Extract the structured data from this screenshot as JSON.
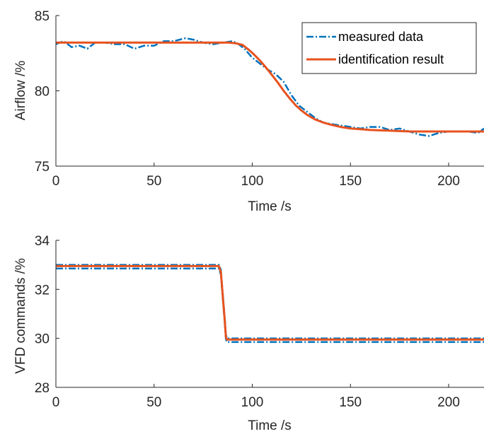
{
  "chart_data": [
    {
      "type": "line",
      "title": "",
      "xlabel": "Time /s",
      "ylabel": "Airflow /%",
      "xlim": [
        0,
        218
      ],
      "ylim": [
        75,
        85
      ],
      "xticks": [
        0,
        50,
        100,
        150,
        200
      ],
      "yticks": [
        75,
        80,
        85
      ],
      "legend_position": "top-right",
      "series": [
        {
          "name": "measured data",
          "color": "#0072BD",
          "style": "dash-dot",
          "x": [
            0,
            4,
            8,
            12,
            16,
            20,
            25,
            30,
            35,
            40,
            45,
            50,
            55,
            60,
            66,
            70,
            75,
            80,
            85,
            90,
            93,
            96,
            100,
            104,
            108,
            112,
            116,
            120,
            124,
            128,
            132,
            136,
            140,
            145,
            150,
            155,
            160,
            165,
            170,
            175,
            180,
            185,
            190,
            195,
            200,
            205,
            210,
            215,
            218
          ],
          "y": [
            83.1,
            83.3,
            82.9,
            83.0,
            82.8,
            83.2,
            83.2,
            83.1,
            83.1,
            82.8,
            83.0,
            83.0,
            83.3,
            83.3,
            83.5,
            83.4,
            83.2,
            83.1,
            83.2,
            83.3,
            83.1,
            82.8,
            82.2,
            81.8,
            81.4,
            81.1,
            80.6,
            79.7,
            79.0,
            78.6,
            78.2,
            77.9,
            77.8,
            77.7,
            77.6,
            77.5,
            77.6,
            77.6,
            77.4,
            77.5,
            77.3,
            77.1,
            77.0,
            77.2,
            77.3,
            77.3,
            77.3,
            77.2,
            77.5
          ]
        },
        {
          "name": "identification result",
          "color": "#E8521E",
          "style": "solid",
          "x": [
            0,
            20,
            40,
            60,
            80,
            88,
            92,
            95,
            98,
            101,
            104,
            107,
            110,
            113,
            116,
            119,
            122,
            125,
            128,
            132,
            136,
            140,
            145,
            150,
            155,
            160,
            170,
            180,
            190,
            200,
            210,
            218
          ],
          "y": [
            83.2,
            83.2,
            83.2,
            83.2,
            83.2,
            83.2,
            83.15,
            83.05,
            82.75,
            82.4,
            82.0,
            81.55,
            81.05,
            80.55,
            80.0,
            79.5,
            79.05,
            78.7,
            78.4,
            78.1,
            77.9,
            77.75,
            77.6,
            77.5,
            77.45,
            77.4,
            77.35,
            77.3,
            77.3,
            77.3,
            77.3,
            77.3
          ]
        }
      ]
    },
    {
      "type": "line",
      "title": "",
      "xlabel": "Time /s",
      "ylabel": "VFD commands  /%",
      "xlim": [
        0,
        218
      ],
      "ylim": [
        28,
        34
      ],
      "xticks": [
        0,
        50,
        100,
        150,
        200
      ],
      "yticks": [
        28,
        30,
        32,
        34
      ],
      "series": [
        {
          "color": "#0072BD",
          "style": "dash-dot",
          "x": [
            0,
            83,
            84,
            85,
            86,
            86.5,
            87,
            218
          ],
          "y": [
            33.0,
            33.0,
            32.8,
            31.8,
            30.8,
            30.2,
            30.0,
            30.0
          ]
        },
        {
          "color": "#0072BD",
          "style": "dash-dot",
          "x": [
            0,
            83,
            84,
            85,
            86,
            86.5,
            87,
            218
          ],
          "y": [
            32.85,
            32.85,
            32.6,
            31.6,
            30.6,
            30.0,
            29.85,
            29.85
          ]
        },
        {
          "color": "#E8521E",
          "style": "solid",
          "x": [
            0,
            83,
            84,
            85,
            86,
            86.5,
            87,
            218
          ],
          "y": [
            32.95,
            32.95,
            32.7,
            31.7,
            30.7,
            30.1,
            29.95,
            29.95
          ]
        }
      ]
    }
  ]
}
